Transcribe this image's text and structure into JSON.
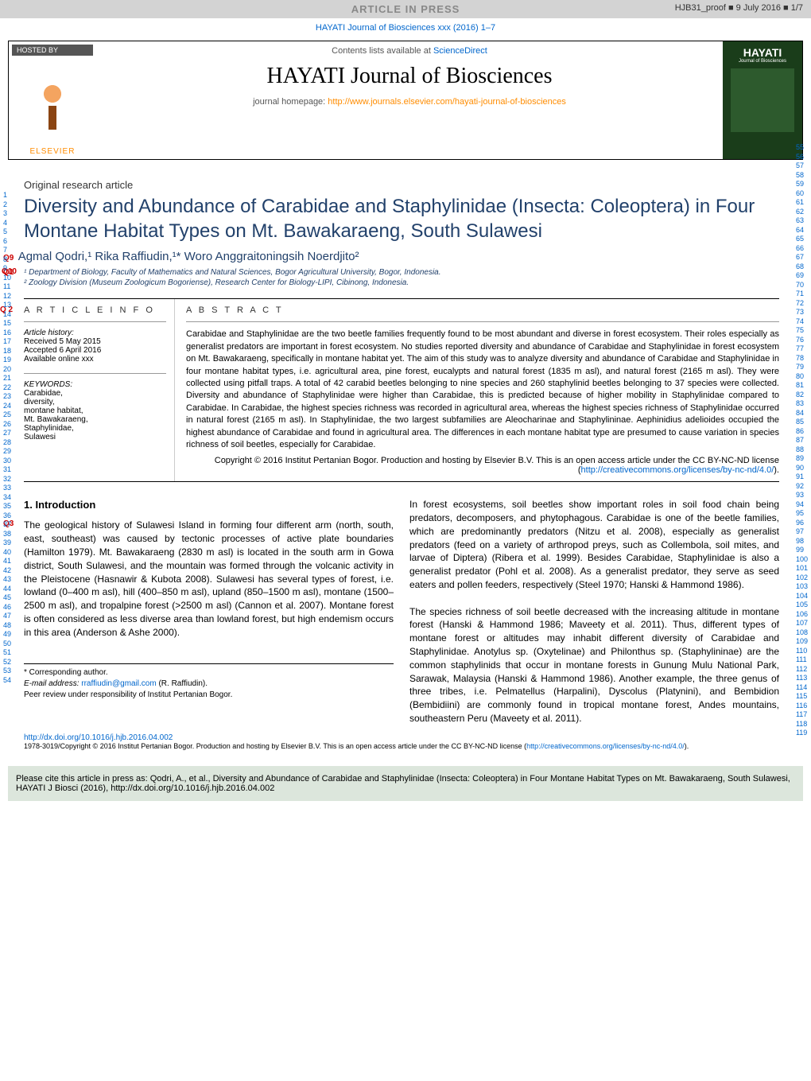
{
  "topbar": {
    "article_in_press": "ARTICLE IN PRESS",
    "proof_info": "HJB31_proof ■ 9 July 2016 ■ 1/7"
  },
  "journal_link": "HAYATI Journal of Biosciences xxx (2016) 1–7",
  "header": {
    "hosted_by": "HOSTED BY",
    "elsevier": "ELSEVIER",
    "contents": "Contents lists available at ",
    "sciencedirect": "ScienceDirect",
    "journal_title": "HAYATI Journal of Biosciences",
    "homepage_label": "journal homepage: ",
    "homepage_url": "http://www.journals.elsevier.com/hayati-journal-of-biosciences",
    "cover_title": "HAYATI",
    "cover_sub": "Journal of Biosciences"
  },
  "article_type": "Original research article",
  "title": "Diversity and Abundance of Carabidae and Staphylinidae (Insecta: Coleoptera) in Four Montane Habitat Types on Mt. Bawakaraeng, South Sulawesi",
  "q_labels": {
    "q1": "Q1",
    "q2": "Q 2",
    "q3": "Q3",
    "q9": "Q9",
    "q10": "Q10"
  },
  "authors_html": "Agmal Qodri,¹ Rika Raffiudin,¹* Woro Anggraitoningsih Noerdjito²",
  "affiliations": [
    "¹ Department of Biology, Faculty of Mathematics and Natural Sciences, Bogor Agricultural University, Bogor, Indonesia.",
    "² Zoology Division (Museum Zoologicum Bogoriense), Research Center for Biology-LIPI, Cibinong, Indonesia."
  ],
  "info": {
    "heading": "A R T I C L E   I N F O",
    "history_label": "Article history:",
    "received": "Received 5 May 2015",
    "accepted": "Accepted 6 April 2016",
    "online": "Available online xxx",
    "keywords_label": "KEYWORDS:",
    "keywords": "Carabidae,\ndiversity,\nmontane habitat,\nMt. Bawakaraeng,\nStaphylinidae,\nSulawesi"
  },
  "abstract": {
    "heading": "A B S T R A C T",
    "text": "Carabidae and Staphylinidae are the two beetle families frequently found to be most abundant and diverse in forest ecosystem. Their roles especially as generalist predators are important in forest ecosystem. No studies reported diversity and abundance of Carabidae and Staphylinidae in forest ecosystem on Mt. Bawakaraeng, specifically in montane habitat yet. The aim of this study was to analyze diversity and abundance of Carabidae and Staphylinidae in four montane habitat types, i.e. agricultural area, pine forest, eucalypts and natural forest (1835 m asl), and natural forest (2165 m asl). They were collected using pitfall traps. A total of 42 carabid beetles belonging to nine species and 260 staphylinid beetles belonging to 37 species were collected. Diversity and abundance of Staphylinidae were higher than Carabidae, this is predicted because of higher mobility in Staphylinidae compared to Carabidae. In Carabidae, the highest species richness was recorded in agricultural area, whereas the highest species richness of Staphylinidae occurred in natural forest (2165 m asl). In Staphylinidae, the two largest subfamilies are Aleocharinae and Staphylininae. Aephinidius adelioides occupied the highest abundance of Carabidae and found in agricultural area. The differences in each montane habitat type are presumed to cause variation in species richness of soil beetles, especially for Carabidae.",
    "copyright": "Copyright © 2016 Institut Pertanian Bogor. Production and hosting by Elsevier B.V. This is an open access article under the CC BY-NC-ND license (",
    "copyright_link": "http://creativecommons.org/licenses/by-nc-nd/4.0/",
    "copyright_close": ")."
  },
  "intro": {
    "heading": "1. Introduction",
    "col1": "The geological history of Sulawesi Island in forming four different arm (north, south, east, southeast) was caused by tectonic processes of active plate boundaries (Hamilton 1979). Mt. Bawakaraeng (2830 m asl) is located in the south arm in Gowa district, South Sulawesi, and the mountain was formed through the volcanic activity in the Pleistocene (Hasnawir & Kubota 2008). Sulawesi has several types of forest, i.e. lowland (0–400 m asl), hill (400–850 m asl), upland (850–1500 m asl), montane (1500–2500 m asl), and tropalpine forest (>2500 m asl) (Cannon et al. 2007). Montane forest is often considered as less diverse area than lowland forest, but high endemism occurs in this area (Anderson & Ashe 2000).",
    "col2": "In forest ecosystems, soil beetles show important roles in soil food chain being predators, decomposers, and phytophagous. Carabidae is one of the beetle families, which are predominantly predators (Nitzu et al. 2008), especially as generalist predators (feed on a variety of arthropod preys, such as Collembola, soil mites, and larvae of Diptera) (Ribera et al. 1999). Besides Carabidae, Staphylinidae is also a generalist predator (Pohl et al. 2008). As a generalist predator, they serve as seed eaters and pollen feeders, respectively (Steel 1970; Hanski & Hammond 1986).\n\nThe species richness of soil beetle decreased with the increasing altitude in montane forest (Hanski & Hammond 1986; Maveety et al. 2011). Thus, different types of montane forest or altitudes may inhabit different diversity of Carabidae and Staphylinidae. Anotylus sp. (Oxytelinae) and Philonthus sp. (Staphylininae) are the common staphylinids that occur in montane forests in Gunung Mulu National Park, Sarawak, Malaysia (Hanski & Hammond 1986). Another example, the three genus of three tribes, i.e. Pelmatellus (Harpalini), Dyscolus (Platynini), and Bembidion (Bembidiini) are commonly found in tropical montane forest, Andes mountains, southeastern Peru (Maveety et al. 2011)."
  },
  "footnotes": {
    "corresponding": "* Corresponding author.",
    "email_label": "E-mail address: ",
    "email": "rraffiudin@gmail.com",
    "email_suffix": " (R. Raffiudin).",
    "peer": "Peer review under responsibility of Institut Pertanian Bogor."
  },
  "doi": "http://dx.doi.org/10.1016/j.hjb.2016.04.002",
  "license": "1978-3019/Copyright © 2016 Institut Pertanian Bogor. Production and hosting by Elsevier B.V. This is an open access article under the CC BY-NC-ND license (",
  "license_link": "http://creativecommons.org/licenses/by-nc-nd/4.0/",
  "license_close": ").",
  "cite_box": "Please cite this article in press as: Qodri, A., et al., Diversity and Abundance of Carabidae and Staphylinidae (Insecta: Coleoptera) in Four Montane Habitat Types on Mt. Bawakaraeng, South Sulawesi, HAYATI J Biosci (2016), http://dx.doi.org/10.1016/j.hjb.2016.04.002",
  "line_numbers": {
    "left_start": 1,
    "left_end": 54,
    "right_start": 55,
    "right_end": 119
  },
  "colors": {
    "title_color": "#22416b",
    "link_color": "#0066cc",
    "q_color": "#cc0000",
    "homepage_color": "#ff8c00",
    "topbar_bg": "#d3d3d3",
    "cite_bg": "#dce6dc",
    "cover_bg": "#1a3d1a"
  }
}
